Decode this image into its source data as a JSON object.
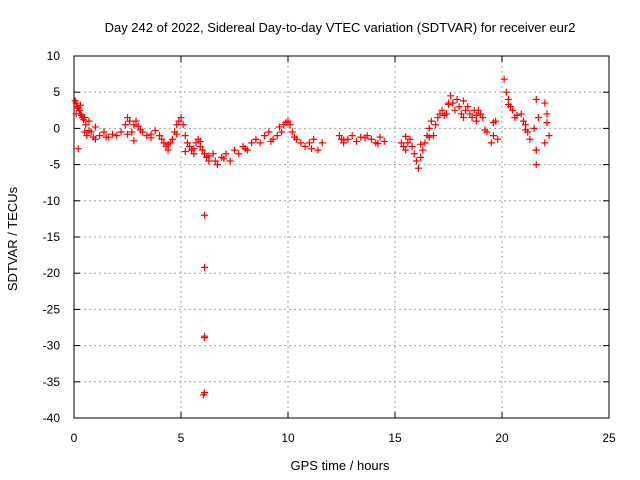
{
  "chart_data": {
    "type": "scatter",
    "title": "Day 242 of 2022, Sidereal Day-to-day VTEC variation (SDTVAR) for receiver eur2",
    "xlabel": "GPS time / hours",
    "ylabel": "SDTVAR / TECUs",
    "xlim": [
      0,
      25
    ],
    "ylim": [
      -40,
      10
    ],
    "xticks": [
      0,
      5,
      10,
      15,
      20,
      25
    ],
    "yticks": [
      10,
      5,
      0,
      -5,
      -10,
      -15,
      -20,
      -25,
      -30,
      -35,
      -40
    ],
    "grid": true,
    "marker": "+",
    "series": [
      {
        "name": "SDTVAR",
        "color": "#ff0000",
        "x": [
          0.05,
          0.1,
          0.15,
          0.2,
          0.25,
          0.3,
          0.35,
          0.4,
          0.45,
          0.5,
          0.55,
          0.6,
          0.7,
          0.8,
          0.9,
          1.0,
          1.2,
          1.4,
          1.6,
          1.8,
          2.0,
          2.2,
          2.4,
          2.5,
          2.6,
          2.7,
          2.8,
          2.9,
          3.0,
          3.2,
          3.4,
          3.6,
          3.8,
          4.0,
          4.1,
          4.2,
          4.3,
          4.4,
          4.5,
          4.6,
          4.7,
          4.8,
          4.9,
          5.0,
          5.1,
          5.2,
          5.3,
          5.4,
          5.5,
          5.6,
          5.7,
          5.8,
          5.9,
          6.0,
          6.1,
          6.2,
          6.3,
          6.5,
          6.6,
          6.7,
          6.9,
          7.1,
          7.3,
          7.5,
          7.7,
          7.9,
          8.1,
          8.3,
          8.5,
          8.7,
          8.9,
          9.1,
          9.3,
          9.5,
          9.7,
          9.8,
          9.9,
          10.0,
          10.1,
          10.2,
          10.4,
          10.6,
          10.8,
          11.0,
          11.2,
          11.4,
          11.6,
          12.4,
          12.5,
          12.6,
          12.8,
          13.0,
          13.2,
          13.4,
          13.7,
          13.9,
          14.1,
          14.3,
          14.5,
          15.3,
          15.4,
          15.5,
          15.6,
          15.7,
          15.8,
          15.9,
          16.0,
          16.1,
          16.2,
          16.3,
          16.4,
          16.5,
          16.6,
          16.7,
          16.8,
          16.9,
          17.0,
          17.1,
          17.2,
          17.3,
          17.4,
          17.5,
          17.6,
          17.7,
          17.8,
          17.9,
          18.0,
          18.1,
          18.2,
          18.3,
          18.4,
          18.5,
          18.6,
          18.7,
          18.8,
          18.9,
          19.0,
          19.1,
          19.3,
          19.5,
          19.6,
          19.7,
          19.8,
          20.1,
          20.2,
          20.3,
          20.4,
          20.5,
          20.6,
          20.9,
          21.0,
          21.1,
          21.2,
          21.5,
          21.6,
          21.7,
          22.0,
          22.1,
          22.2,
          0.1,
          0.2,
          0.3,
          0.5,
          0.7,
          1.0,
          1.5,
          2.5,
          2.8,
          3.1,
          3.6,
          4.4,
          4.8,
          5.2,
          5.6,
          5.9,
          6.3,
          7.0,
          8.0,
          9.2,
          9.6,
          10.3,
          11.1,
          12.6,
          13.6,
          14.2,
          15.5,
          16.2,
          16.6,
          17.5,
          18.2,
          18.8,
          19.2,
          19.6,
          20.3,
          20.7,
          21.1,
          21.6,
          22.1,
          21.3,
          21.6,
          21.6,
          22.0,
          6.1,
          6.1,
          6.1,
          6.1,
          6.1,
          6.05
        ],
        "y": [
          3.8,
          3.5,
          3.0,
          2.8,
          2.5,
          2.0,
          1.8,
          1.5,
          1.2,
          -0.5,
          0.5,
          -1.0,
          1.0,
          -0.5,
          -1.2,
          -1.5,
          -1.0,
          -0.5,
          -1.2,
          -0.8,
          -1.0,
          -0.5,
          0.5,
          1.5,
          1.0,
          -0.5,
          0.5,
          1.0,
          0.3,
          -0.5,
          -1.0,
          -0.8,
          -0.3,
          -1.0,
          -1.5,
          -2.0,
          -2.5,
          -3.0,
          -2.0,
          -1.5,
          -0.5,
          0.5,
          1.0,
          1.5,
          0.5,
          -1.0,
          -2.0,
          -2.5,
          -3.0,
          -3.5,
          -2.0,
          -1.5,
          -2.5,
          -3.0,
          -3.5,
          -4.0,
          -4.5,
          -3.5,
          -4.5,
          -5.0,
          -4.0,
          -3.5,
          -4.5,
          -3.0,
          -3.5,
          -2.5,
          -3.0,
          -2.0,
          -1.5,
          -2.0,
          -1.0,
          -0.5,
          -1.5,
          -1.0,
          -0.5,
          0.5,
          0.8,
          1.0,
          0.5,
          -0.5,
          -1.5,
          -2.0,
          -2.5,
          -2.0,
          -1.5,
          -3.0,
          -2.0,
          -1.0,
          -1.5,
          -2.0,
          -1.5,
          -1.0,
          -1.8,
          -1.2,
          -1.0,
          -1.5,
          -2.0,
          -1.2,
          -1.8,
          -2.0,
          -2.5,
          -3.0,
          -2.0,
          -1.5,
          -2.5,
          -3.5,
          -4.5,
          -5.5,
          -4.0,
          -3.0,
          -2.0,
          -1.0,
          0.0,
          1.0,
          -1.0,
          0.5,
          1.5,
          2.0,
          2.5,
          1.8,
          2.0,
          3.5,
          4.5,
          3.5,
          2.5,
          4.0,
          3.0,
          2.0,
          1.5,
          2.5,
          3.0,
          2.0,
          1.5,
          2.5,
          1.0,
          2.5,
          2.0,
          1.5,
          -0.5,
          -2.0,
          -1.0,
          1.0,
          -1.5,
          6.8,
          5.0,
          4.0,
          3.0,
          2.5,
          1.5,
          2.0,
          1.0,
          0.5,
          -0.5,
          0.0,
          4.0,
          1.5,
          3.5,
          2.0,
          -1.0,
          2.0,
          -2.8,
          3.2,
          1.5,
          -0.3,
          0.2,
          -1.2,
          -0.8,
          -1.7,
          -0.2,
          -1.3,
          -2.2,
          -0.8,
          -3.2,
          -2.8,
          -1.8,
          -3.8,
          -4.2,
          -2.8,
          -1.8,
          0.2,
          -1.2,
          -2.8,
          -1.6,
          -1.3,
          -2.1,
          -1.1,
          -2.2,
          -1.2,
          3.3,
          3.8,
          1.8,
          -0.2,
          0.8,
          3.3,
          1.8,
          -0.2,
          -3.0,
          0.8,
          -1.5,
          -3.0,
          -5.0,
          -2.0,
          -12.0,
          -19.2,
          -28.7,
          -28.9,
          -36.5,
          -36.8
        ]
      }
    ]
  }
}
